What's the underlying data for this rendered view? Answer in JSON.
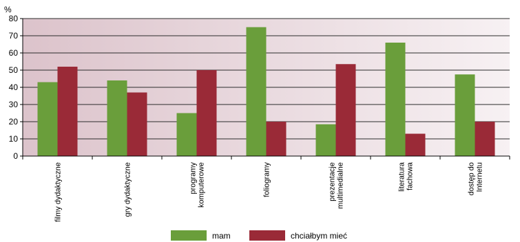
{
  "chart_data": {
    "type": "bar",
    "ylabel": "%",
    "ylim": [
      0,
      80
    ],
    "yticks": [
      0,
      10,
      20,
      30,
      40,
      50,
      60,
      70,
      80
    ],
    "grid": true,
    "legend": "bottom-center",
    "categories": [
      [
        "filmy dydaktyczne"
      ],
      [
        "gry dydaktyczne"
      ],
      [
        "programy",
        "komputerowe"
      ],
      [
        "foliogramy"
      ],
      [
        "prezentacje",
        "multimedialne"
      ],
      [
        "literatura",
        "fachowa"
      ],
      [
        "dostęp do",
        "Internetu"
      ]
    ],
    "series": [
      {
        "name": "mam",
        "color": "#6a9e3b",
        "values": [
          43,
          44,
          25,
          75,
          18.5,
          66,
          47.5
        ]
      },
      {
        "name": "chciałbym mieć",
        "color": "#9a2a37",
        "values": [
          52,
          37,
          50,
          20,
          53.5,
          13,
          20
        ]
      }
    ]
  }
}
